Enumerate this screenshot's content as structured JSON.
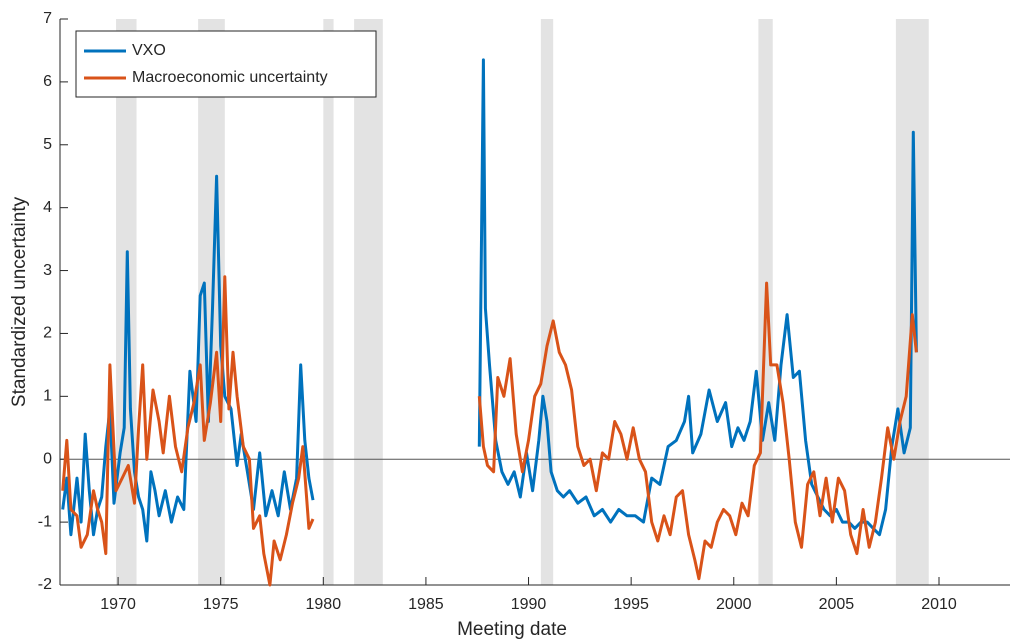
{
  "chart_data": {
    "type": "line",
    "xlabel": "Meeting date",
    "ylabel": "Standardized uncertainty",
    "xlim": [
      1967.17,
      2013.46
    ],
    "ylim": [
      -2,
      7
    ],
    "xticks": [
      1970,
      1975,
      1980,
      1985,
      1990,
      1995,
      2000,
      2005,
      2010
    ],
    "yticks": [
      -2,
      -1,
      0,
      1,
      2,
      3,
      4,
      5,
      6,
      7
    ],
    "legend": "upper left",
    "shading_color": "#e3e3e3",
    "recessions": [
      [
        1969.9,
        1970.9
      ],
      [
        1973.9,
        1975.2
      ],
      [
        1980.0,
        1980.5
      ],
      [
        1981.5,
        1982.9
      ],
      [
        1990.6,
        1991.2
      ],
      [
        2001.2,
        2001.9
      ],
      [
        2007.9,
        2009.5
      ]
    ],
    "series": [
      {
        "name": "VXO",
        "color": "#0072bd",
        "x": [
          1967.3,
          1967.5,
          1967.7,
          1968.0,
          1968.2,
          1968.4,
          1968.6,
          1968.8,
          1969.0,
          1969.2,
          1969.4,
          1969.6,
          1969.8,
          1970.1,
          1970.3,
          1970.45,
          1970.6,
          1970.8,
          1971.0,
          1971.2,
          1971.4,
          1971.6,
          1971.8,
          1972.0,
          1972.3,
          1972.6,
          1972.9,
          1973.2,
          1973.5,
          1973.8,
          1974.0,
          1974.2,
          1974.4,
          1974.6,
          1974.8,
          1975.0,
          1975.2,
          1975.5,
          1975.8,
          1976.0,
          1976.3,
          1976.6,
          1976.9,
          1977.2,
          1977.5,
          1977.8,
          1978.1,
          1978.4,
          1978.7,
          1978.9,
          1979.1,
          1979.3,
          1979.5,
          null,
          1987.6,
          1987.8,
          1987.9,
          1988.1,
          1988.4,
          1988.7,
          1989.0,
          1989.3,
          1989.6,
          1989.9,
          1990.2,
          1990.5,
          1990.7,
          1990.9,
          1991.1,
          1991.4,
          1991.7,
          1992.0,
          1992.4,
          1992.8,
          1993.2,
          1993.6,
          1994.0,
          1994.4,
          1994.8,
          1995.2,
          1995.6,
          1996.0,
          1996.4,
          1996.8,
          1997.2,
          1997.6,
          1997.8,
          1998.0,
          1998.4,
          1998.8,
          1999.2,
          1999.6,
          1999.9,
          2000.2,
          2000.5,
          2000.8,
          2001.1,
          2001.4,
          2001.7,
          2002.0,
          2002.3,
          2002.6,
          2002.9,
          2003.2,
          2003.5,
          2003.8,
          2004.1,
          2004.4,
          2004.7,
          2005.0,
          2005.3,
          2005.6,
          2005.9,
          2006.2,
          2006.5,
          2006.8,
          2007.1,
          2007.4,
          2007.7,
          2008.0,
          2008.3,
          2008.6,
          2008.75,
          2008.9
        ],
        "values": [
          -0.8,
          -0.3,
          -1.2,
          -0.3,
          -1.0,
          0.4,
          -0.5,
          -1.2,
          -0.8,
          -0.6,
          0.2,
          0.8,
          -0.7,
          0.1,
          0.5,
          3.3,
          0.8,
          -0.2,
          -0.6,
          -0.8,
          -1.3,
          -0.2,
          -0.5,
          -0.9,
          -0.5,
          -1.0,
          -0.6,
          -0.8,
          1.4,
          0.6,
          2.6,
          2.8,
          0.6,
          2.4,
          4.5,
          1.8,
          1.0,
          0.8,
          -0.1,
          0.4,
          -0.2,
          -0.8,
          0.1,
          -0.9,
          -0.5,
          -0.9,
          -0.2,
          -0.8,
          -0.3,
          1.5,
          0.3,
          -0.3,
          -0.65,
          null,
          0.2,
          6.35,
          2.4,
          1.5,
          0.3,
          -0.2,
          -0.4,
          -0.2,
          -0.6,
          0.1,
          -0.5,
          0.3,
          1.0,
          0.6,
          -0.2,
          -0.5,
          -0.6,
          -0.5,
          -0.7,
          -0.6,
          -0.9,
          -0.8,
          -1.0,
          -0.8,
          -0.9,
          -0.9,
          -1.0,
          -0.3,
          -0.4,
          0.2,
          0.3,
          0.6,
          1.0,
          0.1,
          0.4,
          1.1,
          0.6,
          0.9,
          0.2,
          0.5,
          0.3,
          0.6,
          1.4,
          0.3,
          0.9,
          0.3,
          1.5,
          2.3,
          1.3,
          1.4,
          0.3,
          -0.4,
          -0.6,
          -0.8,
          -0.9,
          -0.8,
          -1.0,
          -1.0,
          -1.1,
          -1.0,
          -1.0,
          -1.1,
          -1.2,
          -0.8,
          0.2,
          0.8,
          0.1,
          0.5,
          5.2,
          1.7
        ]
      },
      {
        "name": "Macroeconomic uncertainty",
        "color": "#d95319",
        "x": [
          1967.3,
          1967.5,
          1967.7,
          1968.0,
          1968.2,
          1968.5,
          1968.8,
          1969.0,
          1969.2,
          1969.4,
          1969.6,
          1969.9,
          1970.2,
          1970.5,
          1970.8,
          1971.0,
          1971.2,
          1971.4,
          1971.7,
          1972.0,
          1972.2,
          1972.5,
          1972.8,
          1973.1,
          1973.4,
          1973.7,
          1974.0,
          1974.2,
          1974.5,
          1974.8,
          1975.0,
          1975.2,
          1975.4,
          1975.6,
          1975.8,
          1976.1,
          1976.4,
          1976.6,
          1976.9,
          1977.1,
          1977.4,
          1977.6,
          1977.9,
          1978.2,
          1978.5,
          1978.8,
          1979.0,
          1979.3,
          1979.5,
          null,
          1987.6,
          1987.8,
          1988.0,
          1988.3,
          1988.5,
          1988.8,
          1989.1,
          1989.4,
          1989.7,
          1990.0,
          1990.3,
          1990.6,
          1990.9,
          1991.2,
          1991.5,
          1991.8,
          1992.1,
          1992.4,
          1992.7,
          1993.0,
          1993.3,
          1993.6,
          1993.9,
          1994.2,
          1994.5,
          1994.8,
          1995.1,
          1995.4,
          1995.7,
          1996.0,
          1996.3,
          1996.6,
          1996.9,
          1997.2,
          1997.5,
          1997.8,
          1998.1,
          1998.3,
          1998.6,
          1998.9,
          1999.2,
          1999.5,
          1999.8,
          2000.1,
          2000.4,
          2000.7,
          2001.0,
          2001.3,
          2001.6,
          2001.8,
          2002.1,
          2002.4,
          2002.7,
          2003.0,
          2003.3,
          2003.6,
          2003.9,
          2004.2,
          2004.5,
          2004.8,
          2005.1,
          2005.4,
          2005.7,
          2006.0,
          2006.3,
          2006.6,
          2006.9,
          2007.2,
          2007.5,
          2007.8,
          2008.1,
          2008.4,
          2008.7,
          2008.9
        ],
        "values": [
          -0.5,
          0.3,
          -0.8,
          -0.9,
          -1.4,
          -1.2,
          -0.5,
          -0.8,
          -1.0,
          -1.5,
          1.5,
          -0.5,
          -0.3,
          -0.1,
          -0.7,
          0.5,
          1.5,
          0.0,
          1.1,
          0.6,
          0.1,
          1.0,
          0.2,
          -0.2,
          0.5,
          0.9,
          1.5,
          0.3,
          0.9,
          1.7,
          0.6,
          2.9,
          0.8,
          1.7,
          1.0,
          0.2,
          0.0,
          -1.1,
          -0.9,
          -1.5,
          -2.0,
          -1.3,
          -1.6,
          -1.2,
          -0.7,
          -0.3,
          0.2,
          -1.1,
          -0.95,
          null,
          1.0,
          0.2,
          -0.1,
          -0.2,
          1.3,
          1.0,
          1.6,
          0.4,
          -0.2,
          0.3,
          1.0,
          1.2,
          1.8,
          2.2,
          1.7,
          1.5,
          1.1,
          0.2,
          -0.1,
          0.0,
          -0.5,
          0.1,
          0.0,
          0.6,
          0.4,
          0.0,
          0.5,
          0.0,
          -0.2,
          -1.0,
          -1.3,
          -0.9,
          -1.2,
          -0.6,
          -0.5,
          -1.2,
          -1.6,
          -1.9,
          -1.3,
          -1.4,
          -1.0,
          -0.8,
          -0.9,
          -1.2,
          -0.7,
          -0.9,
          -0.1,
          0.1,
          2.8,
          1.5,
          1.5,
          0.9,
          0.0,
          -1.0,
          -1.4,
          -0.4,
          -0.2,
          -0.9,
          -0.3,
          -1.0,
          -0.3,
          -0.5,
          -1.2,
          -1.5,
          -0.8,
          -1.4,
          -1.0,
          -0.3,
          0.5,
          0.0,
          0.6,
          1.0,
          2.3,
          1.7
        ]
      }
    ]
  }
}
